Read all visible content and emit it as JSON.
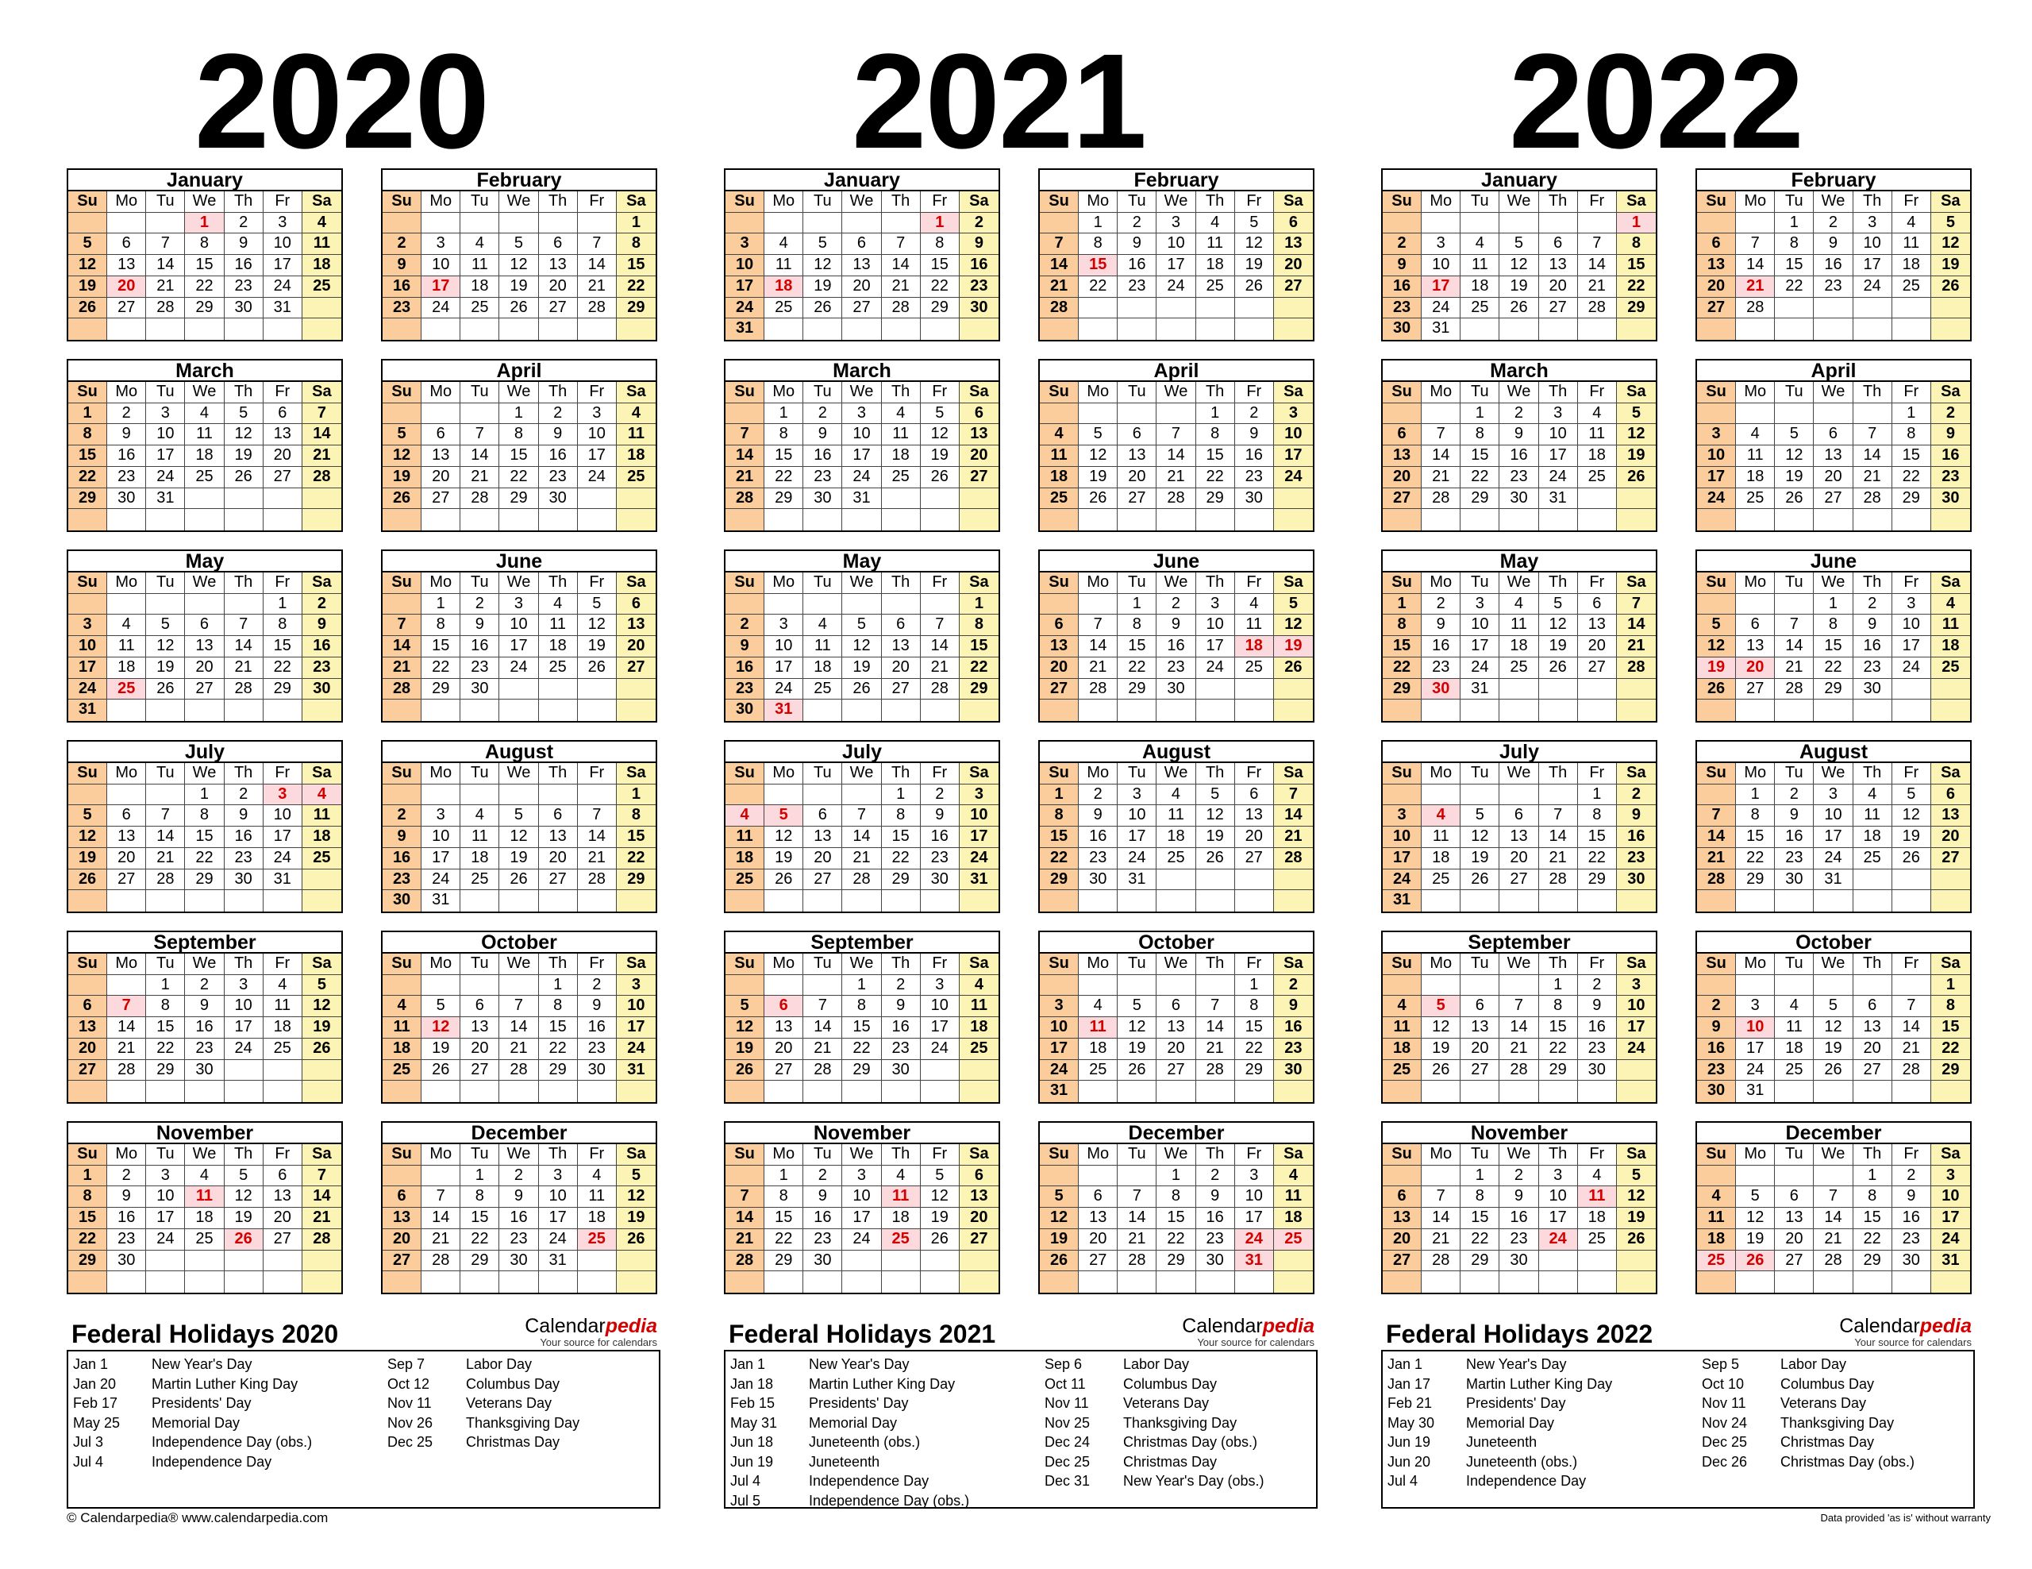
{
  "weekdays": [
    "Su",
    "Mo",
    "Tu",
    "We",
    "Th",
    "Fr",
    "Sa"
  ],
  "years": [
    {
      "year": "2020",
      "months": [
        {
          "name": "January",
          "start": 3,
          "days": 31,
          "hol": [
            1,
            20
          ]
        },
        {
          "name": "February",
          "start": 6,
          "days": 29,
          "hol": [
            17
          ]
        },
        {
          "name": "March",
          "start": 0,
          "days": 31,
          "hol": []
        },
        {
          "name": "April",
          "start": 3,
          "days": 30,
          "hol": []
        },
        {
          "name": "May",
          "start": 5,
          "days": 31,
          "hol": [
            25
          ]
        },
        {
          "name": "June",
          "start": 1,
          "days": 30,
          "hol": []
        },
        {
          "name": "July",
          "start": 3,
          "days": 31,
          "hol": [
            3,
            4
          ]
        },
        {
          "name": "August",
          "start": 6,
          "days": 31,
          "hol": []
        },
        {
          "name": "September",
          "start": 2,
          "days": 30,
          "hol": [
            7
          ]
        },
        {
          "name": "October",
          "start": 4,
          "days": 31,
          "hol": [
            12
          ]
        },
        {
          "name": "November",
          "start": 0,
          "days": 30,
          "hol": [
            11,
            26
          ]
        },
        {
          "name": "December",
          "start": 2,
          "days": 31,
          "hol": [
            25
          ]
        }
      ],
      "holidays_title": "Federal Holidays 2020",
      "holidays": [
        [
          "Jan 1",
          "New Year's Day"
        ],
        [
          "Jan 20",
          "Martin Luther King Day"
        ],
        [
          "Feb 17",
          "Presidents' Day"
        ],
        [
          "May 25",
          "Memorial Day"
        ],
        [
          "Jul 3",
          "Independence Day (obs.)"
        ],
        [
          "Jul 4",
          "Independence Day"
        ],
        [
          "Sep 7",
          "Labor Day"
        ],
        [
          "Oct 12",
          "Columbus Day"
        ],
        [
          "Nov 11",
          "Veterans Day"
        ],
        [
          "Nov 26",
          "Thanksgiving Day"
        ],
        [
          "Dec 25",
          "Christmas Day"
        ]
      ],
      "split": 6
    },
    {
      "year": "2021",
      "months": [
        {
          "name": "January",
          "start": 5,
          "days": 31,
          "hol": [
            1,
            18
          ]
        },
        {
          "name": "February",
          "start": 1,
          "days": 28,
          "hol": [
            15
          ]
        },
        {
          "name": "March",
          "start": 1,
          "days": 31,
          "hol": []
        },
        {
          "name": "April",
          "start": 4,
          "days": 30,
          "hol": []
        },
        {
          "name": "May",
          "start": 6,
          "days": 31,
          "hol": [
            31
          ]
        },
        {
          "name": "June",
          "start": 2,
          "days": 30,
          "hol": [
            18,
            19
          ]
        },
        {
          "name": "July",
          "start": 4,
          "days": 31,
          "hol": [
            4,
            5
          ]
        },
        {
          "name": "August",
          "start": 0,
          "days": 31,
          "hol": []
        },
        {
          "name": "September",
          "start": 3,
          "days": 30,
          "hol": [
            6
          ]
        },
        {
          "name": "October",
          "start": 5,
          "days": 31,
          "hol": [
            11
          ]
        },
        {
          "name": "November",
          "start": 1,
          "days": 30,
          "hol": [
            11,
            25
          ]
        },
        {
          "name": "December",
          "start": 3,
          "days": 31,
          "hol": [
            24,
            25,
            31
          ]
        }
      ],
      "holidays_title": "Federal Holidays 2021",
      "holidays": [
        [
          "Jan 1",
          "New Year's Day"
        ],
        [
          "Jan 18",
          "Martin Luther King Day"
        ],
        [
          "Feb 15",
          "Presidents' Day"
        ],
        [
          "May 31",
          "Memorial Day"
        ],
        [
          "Jun 18",
          "Juneteenth (obs.)"
        ],
        [
          "Jun 19",
          "Juneteenth"
        ],
        [
          "Jul 4",
          "Independence Day"
        ],
        [
          "Jul 5",
          "Independence Day (obs.)"
        ],
        [
          "Sep 6",
          "Labor Day"
        ],
        [
          "Oct 11",
          "Columbus Day"
        ],
        [
          "Nov 11",
          "Veterans Day"
        ],
        [
          "Nov 25",
          "Thanksgiving Day"
        ],
        [
          "Dec 24",
          "Christmas Day (obs.)"
        ],
        [
          "Dec 25",
          "Christmas Day"
        ],
        [
          "Dec 31",
          "New Year's Day (obs.)"
        ]
      ],
      "split": 8
    },
    {
      "year": "2022",
      "months": [
        {
          "name": "January",
          "start": 6,
          "days": 31,
          "hol": [
            1,
            17
          ]
        },
        {
          "name": "February",
          "start": 2,
          "days": 28,
          "hol": [
            21
          ]
        },
        {
          "name": "March",
          "start": 2,
          "days": 31,
          "hol": []
        },
        {
          "name": "April",
          "start": 5,
          "days": 30,
          "hol": []
        },
        {
          "name": "May",
          "start": 0,
          "days": 31,
          "hol": [
            30
          ]
        },
        {
          "name": "June",
          "start": 3,
          "days": 30,
          "hol": [
            19,
            20
          ]
        },
        {
          "name": "July",
          "start": 5,
          "days": 31,
          "hol": [
            4
          ]
        },
        {
          "name": "August",
          "start": 1,
          "days": 31,
          "hol": []
        },
        {
          "name": "September",
          "start": 4,
          "days": 30,
          "hol": [
            5
          ]
        },
        {
          "name": "October",
          "start": 6,
          "days": 31,
          "hol": [
            10
          ]
        },
        {
          "name": "November",
          "start": 2,
          "days": 30,
          "hol": [
            11,
            24
          ]
        },
        {
          "name": "December",
          "start": 4,
          "days": 31,
          "hol": [
            25,
            26
          ]
        }
      ],
      "holidays_title": "Federal Holidays 2022",
      "holidays": [
        [
          "Jan 1",
          "New Year's Day"
        ],
        [
          "Jan 17",
          "Martin Luther King Day"
        ],
        [
          "Feb 21",
          "Presidents' Day"
        ],
        [
          "May 30",
          "Memorial Day"
        ],
        [
          "Jun 19",
          "Juneteenth"
        ],
        [
          "Jun 20",
          "Juneteenth (obs.)"
        ],
        [
          "Jul 4",
          "Independence Day"
        ],
        [
          "Sep 5",
          "Labor Day"
        ],
        [
          "Oct 10",
          "Columbus Day"
        ],
        [
          "Nov 11",
          "Veterans Day"
        ],
        [
          "Nov 24",
          "Thanksgiving Day"
        ],
        [
          "Dec 25",
          "Christmas Day"
        ],
        [
          "Dec 26",
          "Christmas Day (obs.)"
        ]
      ],
      "split": 7
    }
  ],
  "brand": {
    "name_plain": "Calendar",
    "name_red": "pedia",
    "tagline": "Your source for calendars"
  },
  "footer": {
    "left": "© Calendarpedia®   www.calendarpedia.com",
    "right": "Data provided 'as is' without warranty"
  },
  "colors": {
    "sunday": "#fbcd9c",
    "saturday": "#fcf4b4",
    "holiday_bg": "#fcd9dc",
    "holiday_text": "#d40000"
  }
}
